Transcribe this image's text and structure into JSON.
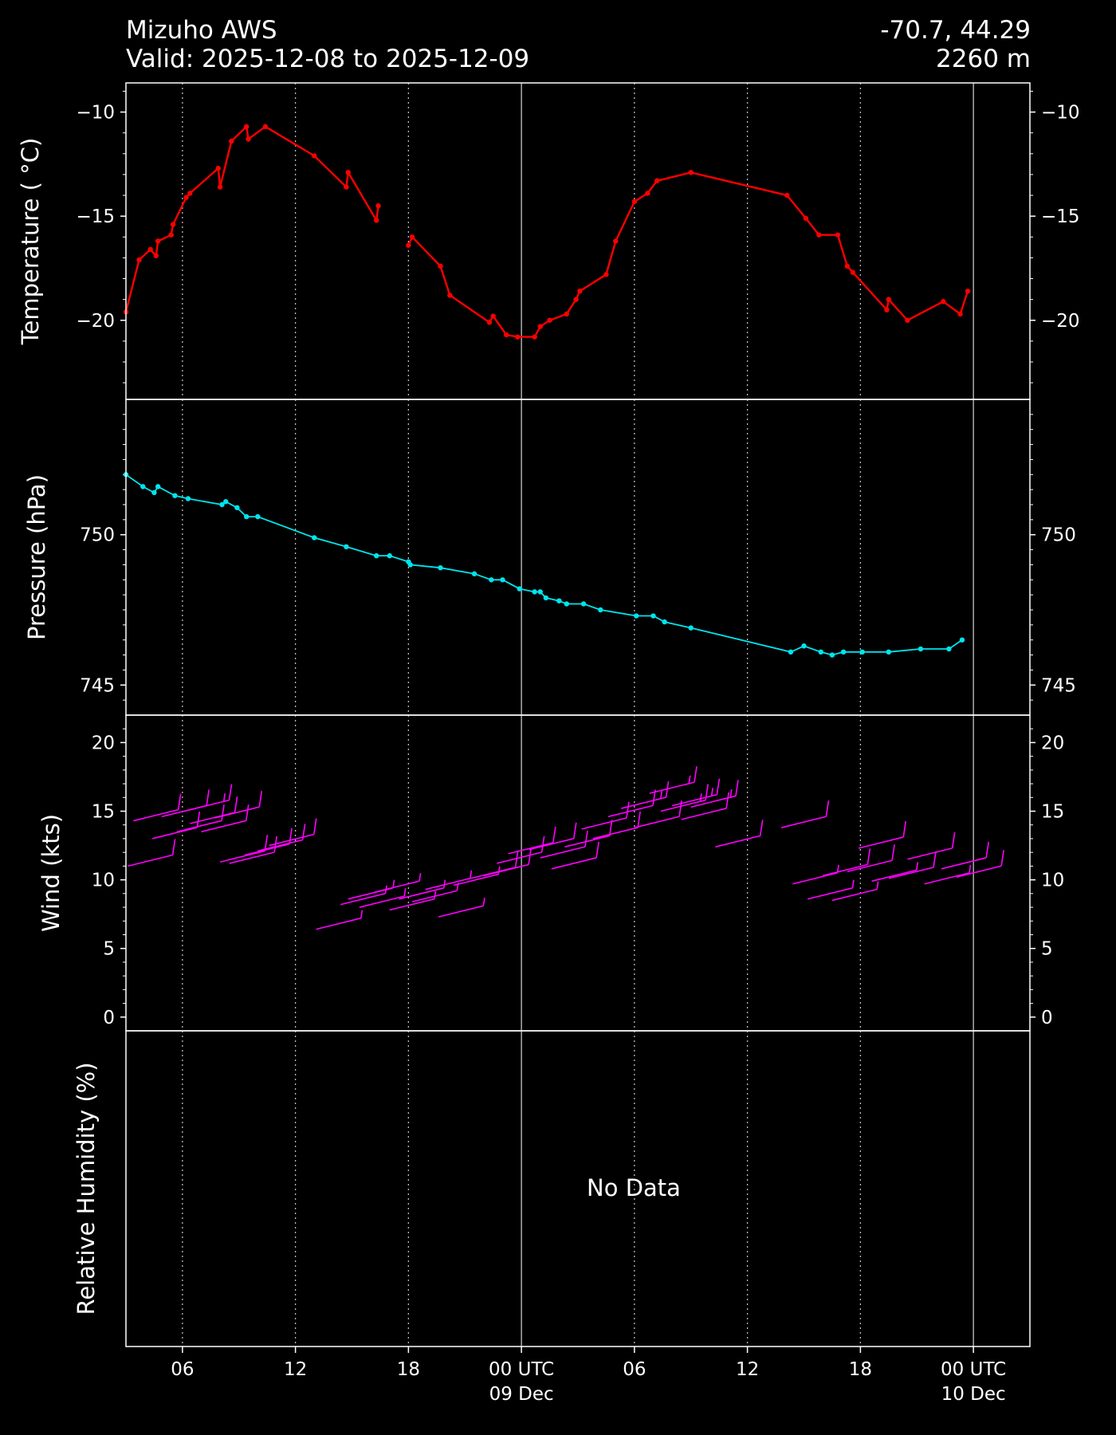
{
  "header": {
    "station": "Mizuho AWS",
    "valid": "Valid: 2025-12-08 to 2025-12-09",
    "coords": "-70.7, 44.29",
    "elevation": "2260 m"
  },
  "colors": {
    "background": "#000000",
    "foreground": "#ffffff",
    "temperature": "#ff0000",
    "pressure": "#00e5ee",
    "wind": "#ff00ff",
    "grid": "#bbbbbb"
  },
  "chart_data": [
    {
      "type": "line",
      "ylabel": "Temperature ($^\\circ$C)",
      "ylabel_display": "Temperature ( °C)",
      "x_unit": "hours since 2025-12-08 00 UTC",
      "ylim": [
        -23.8,
        -8.6
      ],
      "yticks": [
        -10,
        -15,
        -20
      ],
      "ytick_labels": [
        "−10",
        "−15",
        "−20"
      ],
      "grid": "vertical only",
      "x": [
        3.0,
        3.7,
        4.3,
        4.6,
        4.7,
        5.4,
        5.5,
        6.2,
        6.4,
        7.9,
        8.0,
        8.6,
        9.4,
        9.5,
        10.4,
        13.0,
        14.7,
        14.8,
        16.3,
        16.4,
        18.0,
        18.2,
        19.7,
        20.2,
        22.3,
        22.5,
        23.2,
        23.8,
        24.7,
        25.0,
        25.5,
        26.4,
        26.9,
        27.1,
        28.5,
        29.0,
        30.0,
        30.7,
        31.2,
        33.0,
        38.1,
        39.1,
        39.8,
        40.8,
        41.3,
        41.6,
        43.4,
        43.5,
        44.5,
        46.4,
        47.3,
        47.7
      ],
      "y": [
        -19.6,
        -17.1,
        -16.6,
        -16.9,
        -16.2,
        -15.9,
        -15.4,
        -14.1,
        -13.9,
        -12.7,
        -13.6,
        -11.4,
        -10.7,
        -11.3,
        -10.7,
        -12.1,
        -13.6,
        -12.9,
        -15.2,
        -14.5,
        -16.4,
        -16.0,
        -17.4,
        -18.8,
        -20.1,
        -19.8,
        -20.7,
        -20.8,
        -20.8,
        -20.3,
        -20.0,
        -19.7,
        -19.0,
        -18.6,
        -17.8,
        -16.2,
        -14.3,
        -13.9,
        -13.3,
        -12.9,
        -14.0,
        -15.1,
        -15.9,
        -15.9,
        -17.4,
        -17.7,
        -19.5,
        -19.0,
        -20.0,
        -19.1,
        -19.7,
        -18.6
      ]
    },
    {
      "type": "line",
      "ylabel": "Pressure (hPa)",
      "x_unit": "hours since 2025-12-08 00 UTC",
      "ylim": [
        744.0,
        754.5
      ],
      "yticks": [
        750,
        745
      ],
      "ytick_labels": [
        "750",
        "745"
      ],
      "grid": "vertical only",
      "x": [
        3.0,
        3.9,
        4.5,
        4.7,
        5.6,
        6.3,
        8.1,
        8.3,
        8.9,
        9.4,
        10.0,
        13.0,
        14.7,
        16.3,
        17.0,
        18.0,
        18.1,
        19.7,
        21.5,
        22.4,
        23.0,
        23.9,
        24.7,
        25.0,
        25.3,
        26.0,
        26.4,
        27.3,
        28.2,
        30.1,
        31.0,
        31.6,
        33.0,
        38.3,
        39.0,
        39.9,
        40.5,
        41.1,
        42.1,
        43.5,
        45.2,
        46.7,
        47.4
      ],
      "y": [
        752.0,
        751.6,
        751.4,
        751.6,
        751.3,
        751.2,
        751.0,
        751.1,
        750.9,
        750.6,
        750.6,
        749.9,
        749.6,
        749.3,
        749.3,
        749.1,
        749.0,
        748.9,
        748.7,
        748.5,
        748.5,
        748.2,
        748.1,
        748.1,
        747.9,
        747.8,
        747.7,
        747.7,
        747.5,
        747.3,
        747.3,
        747.1,
        746.9,
        746.1,
        746.3,
        746.1,
        746.0,
        746.1,
        746.1,
        746.1,
        746.2,
        746.2,
        746.5
      ]
    },
    {
      "type": "scatter",
      "ylabel": "Wind (kts)",
      "note": "wind barbs, base of each barb at (hour, speed)",
      "x_unit": "hours since 2025-12-08 00 UTC",
      "ylim": [
        -1.0,
        22.0
      ],
      "yticks": [
        20,
        15,
        10,
        5,
        0
      ],
      "ytick_labels": [
        "20",
        "15",
        "10",
        "5",
        "0"
      ],
      "grid": "vertical only",
      "x": [
        3.1,
        3.4,
        4.4,
        4.9,
        5.7,
        6.1,
        6.4,
        7.0,
        7.7,
        8.0,
        8.5,
        9.3,
        10.0,
        10.6,
        13.1,
        14.4,
        14.8,
        15.4,
        16.2,
        17.0,
        17.5,
        18.2,
        18.9,
        19.6,
        20.4,
        21.3,
        22.0,
        22.7,
        23.3,
        24.4,
        25.0,
        25.6,
        26.3,
        27.2,
        27.8,
        28.6,
        29.3,
        30.0,
        30.8,
        31.4,
        32.0,
        32.5,
        33.0,
        34.3,
        37.8,
        38.4,
        39.2,
        40.0,
        40.5,
        41.3,
        41.9,
        42.6,
        43.5,
        44.5,
        45.4,
        46.3,
        47.1
      ],
      "y": [
        11.0,
        14.3,
        13.0,
        14.6,
        13.5,
        15.0,
        14.1,
        13.5,
        14.5,
        11.3,
        11.2,
        11.8,
        12.1,
        12.5,
        6.4,
        8.2,
        8.6,
        8.0,
        9.1,
        7.8,
        8.6,
        8.4,
        9.3,
        7.3,
        9.6,
        10.1,
        10.3,
        11.2,
        11.9,
        12.2,
        11.6,
        10.8,
        12.4,
        13.7,
        13.0,
        14.6,
        15.2,
        13.8,
        16.3,
        15.0,
        15.4,
        14.4,
        15.3,
        12.4,
        13.8,
        9.7,
        8.6,
        10.3,
        8.5,
        10.6,
        12.3,
        9.9,
        10.1,
        11.5,
        9.7,
        10.8,
        10.2
      ],
      "speed_kts": [
        11.0,
        14.3,
        13.0,
        14.6,
        13.5,
        15.0,
        14.1,
        13.5,
        14.5,
        11.3,
        11.2,
        11.8,
        12.1,
        12.5,
        6.4,
        8.2,
        8.6,
        8.0,
        9.1,
        7.8,
        8.6,
        8.4,
        9.3,
        7.3,
        9.6,
        10.1,
        10.3,
        11.2,
        11.9,
        12.2,
        11.6,
        10.8,
        12.4,
        13.7,
        13.0,
        14.6,
        15.2,
        13.8,
        16.3,
        15.0,
        15.4,
        14.4,
        15.3,
        12.4,
        13.8,
        9.7,
        8.6,
        10.3,
        8.5,
        10.6,
        12.3,
        9.9,
        10.1,
        11.5,
        9.7,
        10.8,
        10.2
      ]
    },
    {
      "type": "line",
      "ylabel": "Relative Humidity (%)",
      "annotation": "No Data",
      "series": []
    }
  ],
  "xaxis": {
    "xlim_hours": [
      3.0,
      51.0
    ],
    "major_ticks": [
      {
        "hour": 6,
        "label": "06"
      },
      {
        "hour": 12,
        "label": "12"
      },
      {
        "hour": 18,
        "label": "18"
      },
      {
        "hour": 24,
        "label": "00 UTC",
        "label2": "09 Dec"
      },
      {
        "hour": 30,
        "label": "06"
      },
      {
        "hour": 36,
        "label": "12"
      },
      {
        "hour": 42,
        "label": "18"
      },
      {
        "hour": 48,
        "label": "00 UTC",
        "label2": "10 Dec"
      }
    ]
  }
}
